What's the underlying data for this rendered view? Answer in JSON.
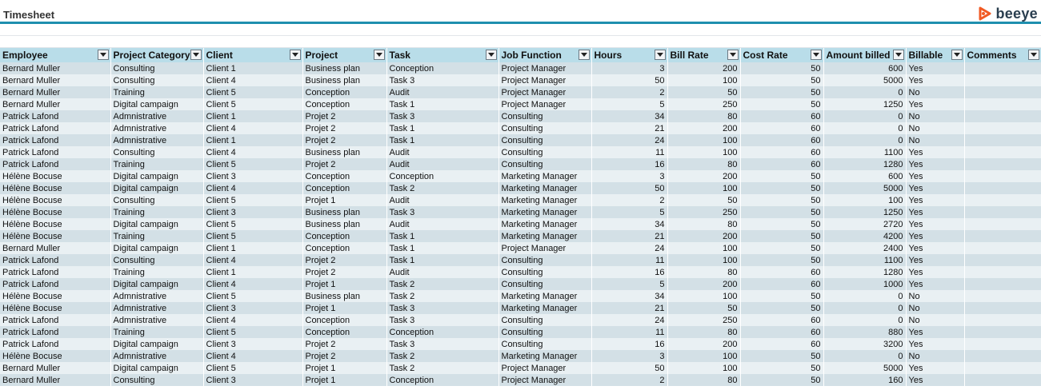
{
  "sheet": {
    "title": "Timesheet"
  },
  "brand": {
    "name": "beeye",
    "icon": "beeye-logo-icon",
    "color": "#f15a24"
  },
  "table": {
    "headers": [
      "Employee",
      "Project Category",
      "Client",
      "Project",
      "Task",
      "Job Function",
      "Hours",
      "Bill Rate",
      "Cost Rate",
      "Amount billed",
      "Billable",
      "Comments"
    ],
    "rows": [
      [
        "Bernard Muller",
        "Consulting",
        "Client 1",
        "Business plan",
        "Conception",
        "Project Manager",
        "3",
        "200",
        "50",
        "600",
        "Yes",
        ""
      ],
      [
        "Bernard Muller",
        "Consulting",
        "Client 4",
        "Business plan",
        "Task 3",
        "Project Manager",
        "50",
        "100",
        "50",
        "5000",
        "Yes",
        ""
      ],
      [
        "Bernard Muller",
        "Training",
        "Client 5",
        "Conception",
        "Audit",
        "Project Manager",
        "2",
        "50",
        "50",
        "0",
        "No",
        ""
      ],
      [
        "Bernard Muller",
        "Digital campaign",
        "Client 5",
        "Conception",
        "Task 1",
        "Project Manager",
        "5",
        "250",
        "50",
        "1250",
        "Yes",
        ""
      ],
      [
        "Patrick Lafond",
        "Admnistrative",
        "Client 1",
        "Projet 2",
        "Task 3",
        "Consulting",
        "34",
        "80",
        "60",
        "0",
        "No",
        ""
      ],
      [
        "Patrick Lafond",
        "Admnistrative",
        "Client 4",
        "Projet 2",
        "Task 1",
        "Consulting",
        "21",
        "200",
        "60",
        "0",
        "No",
        ""
      ],
      [
        "Patrick Lafond",
        "Admnistrative",
        "Client 1",
        "Projet 2",
        "Task 1",
        "Consulting",
        "24",
        "100",
        "60",
        "0",
        "No",
        ""
      ],
      [
        "Patrick Lafond",
        "Consulting",
        "Client 4",
        "Business plan",
        "Audit",
        "Consulting",
        "11",
        "100",
        "60",
        "1100",
        "Yes",
        ""
      ],
      [
        "Patrick Lafond",
        "Training",
        "Client 5",
        "Projet 2",
        "Audit",
        "Consulting",
        "16",
        "80",
        "60",
        "1280",
        "Yes",
        ""
      ],
      [
        "Hélène Bocuse",
        "Digital campaign",
        "Client 3",
        "Conception",
        "Conception",
        "Marketing Manager",
        "3",
        "200",
        "50",
        "600",
        "Yes",
        ""
      ],
      [
        "Hélène Bocuse",
        "Digital campaign",
        "Client 4",
        "Conception",
        "Task 2",
        "Marketing Manager",
        "50",
        "100",
        "50",
        "5000",
        "Yes",
        ""
      ],
      [
        "Hélène Bocuse",
        "Consulting",
        "Client 5",
        "Projet 1",
        "Audit",
        "Marketing Manager",
        "2",
        "50",
        "50",
        "100",
        "Yes",
        ""
      ],
      [
        "Hélène Bocuse",
        "Training",
        "Client 3",
        "Business plan",
        "Task 3",
        "Marketing Manager",
        "5",
        "250",
        "50",
        "1250",
        "Yes",
        ""
      ],
      [
        "Hélène Bocuse",
        "Digital campaign",
        "Client 5",
        "Business plan",
        "Audit",
        "Marketing Manager",
        "34",
        "80",
        "50",
        "2720",
        "Yes",
        ""
      ],
      [
        "Hélène Bocuse",
        "Training",
        "Client 5",
        "Conception",
        "Task 1",
        "Marketing Manager",
        "21",
        "200",
        "50",
        "4200",
        "Yes",
        ""
      ],
      [
        "Bernard Muller",
        "Digital campaign",
        "Client 1",
        "Conception",
        "Task 1",
        "Project Manager",
        "24",
        "100",
        "50",
        "2400",
        "Yes",
        ""
      ],
      [
        "Patrick Lafond",
        "Consulting",
        "Client 4",
        "Projet 2",
        "Task 1",
        "Consulting",
        "11",
        "100",
        "50",
        "1100",
        "Yes",
        ""
      ],
      [
        "Patrick Lafond",
        "Training",
        "Client 1",
        "Projet 2",
        "Audit",
        "Consulting",
        "16",
        "80",
        "60",
        "1280",
        "Yes",
        ""
      ],
      [
        "Patrick Lafond",
        "Digital campaign",
        "Client 4",
        "Projet 1",
        "Task 2",
        "Consulting",
        "5",
        "200",
        "60",
        "1000",
        "Yes",
        ""
      ],
      [
        "Hélène Bocuse",
        "Admnistrative",
        "Client 5",
        "Business plan",
        "Task 2",
        "Marketing Manager",
        "34",
        "100",
        "50",
        "0",
        "No",
        ""
      ],
      [
        "Hélène Bocuse",
        "Admnistrative",
        "Client 3",
        "Projet 1",
        "Task 3",
        "Marketing Manager",
        "21",
        "50",
        "50",
        "0",
        "No",
        ""
      ],
      [
        "Patrick Lafond",
        "Admnistrative",
        "Client 4",
        "Conception",
        "Task 3",
        "Consulting",
        "24",
        "250",
        "60",
        "0",
        "No",
        ""
      ],
      [
        "Patrick Lafond",
        "Training",
        "Client 5",
        "Conception",
        "Conception",
        "Consulting",
        "11",
        "80",
        "60",
        "880",
        "Yes",
        ""
      ],
      [
        "Patrick Lafond",
        "Digital campaign",
        "Client 3",
        "Projet 2",
        "Task 3",
        "Consulting",
        "16",
        "200",
        "60",
        "3200",
        "Yes",
        ""
      ],
      [
        "Hélène Bocuse",
        "Admnistrative",
        "Client 4",
        "Projet 2",
        "Task 2",
        "Marketing Manager",
        "3",
        "100",
        "50",
        "0",
        "No",
        ""
      ],
      [
        "Bernard Muller",
        "Digital campaign",
        "Client 5",
        "Projet 1",
        "Task 2",
        "Project Manager",
        "50",
        "100",
        "50",
        "5000",
        "Yes",
        ""
      ],
      [
        "Bernard Muller",
        "Consulting",
        "Client 3",
        "Projet 1",
        "Conception",
        "Project Manager",
        "2",
        "80",
        "50",
        "160",
        "Yes",
        ""
      ]
    ]
  }
}
